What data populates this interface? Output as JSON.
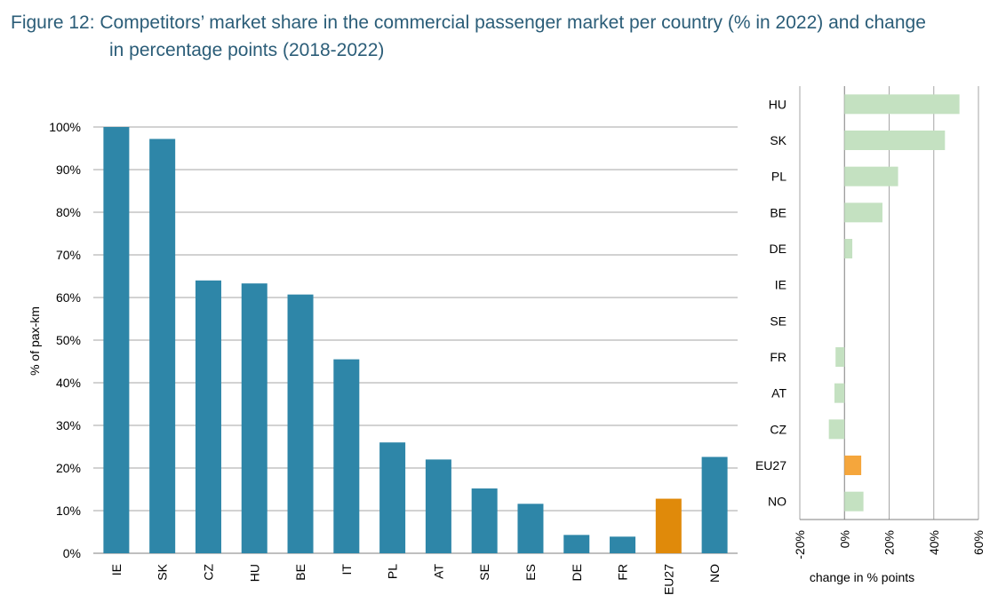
{
  "title": {
    "line1": "Figure 12: Competitors’ market share in the commercial passenger market per country (% in 2022) and change",
    "line2": "in percentage points (2018-2022)"
  },
  "chart_data": [
    {
      "type": "bar",
      "categories": [
        "IE",
        "SK",
        "CZ",
        "HU",
        "BE",
        "IT",
        "PL",
        "AT",
        "SE",
        "ES",
        "DE",
        "FR",
        "EU27",
        "NO"
      ],
      "values": [
        100,
        97.2,
        64,
        63.3,
        60.7,
        45.5,
        26,
        22,
        15.2,
        11.6,
        4.3,
        3.9,
        12.8,
        22.6
      ],
      "highlight": "EU27",
      "ylabel": "% of pax-km",
      "xlabel": "",
      "ylim": [
        0,
        100
      ],
      "yticks": [
        "0%",
        "10%",
        "20%",
        "30%",
        "40%",
        "50%",
        "60%",
        "70%",
        "80%",
        "90%",
        "100%"
      ],
      "grid": true,
      "colors": {
        "bar": "#2e86a8",
        "highlight": "#e08a0a",
        "grid": "#a6a6a6"
      }
    },
    {
      "type": "bar",
      "orientation": "horizontal",
      "categories": [
        "HU",
        "SK",
        "PL",
        "BE",
        "DE",
        "IE",
        "SE",
        "FR",
        "AT",
        "CZ",
        "EU27",
        "NO"
      ],
      "values": [
        51.5,
        45,
        24,
        17,
        3.5,
        0,
        0,
        -4,
        -4.5,
        -7,
        7.5,
        8.5
      ],
      "highlight": "EU27",
      "xlabel": "change in % points",
      "xlim": [
        -20,
        60
      ],
      "xticks": [
        "-20%",
        "0%",
        "20%",
        "40%",
        "60%"
      ],
      "grid": true,
      "colors": {
        "bar": "#c4e1c1",
        "highlight": "#f5a63c",
        "grid": "#a6a6a6"
      }
    }
  ]
}
